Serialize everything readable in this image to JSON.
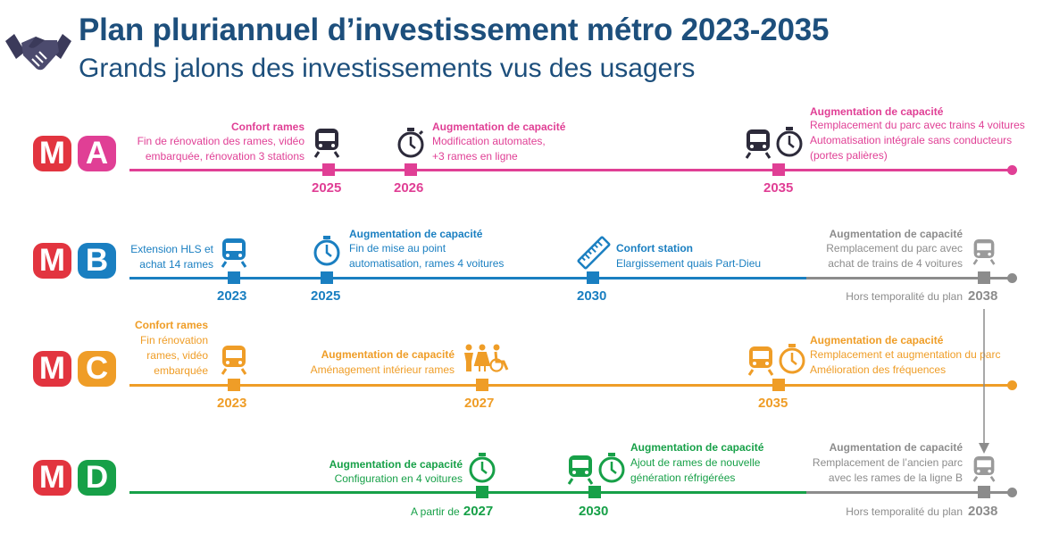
{
  "header": {
    "title": "Plan pluriannuel d’investissement métro 2023-2035",
    "subtitle": "Grands jalons des investissements vus des usagers"
  },
  "colors": {
    "title": "#1d4f7c",
    "red": "#e2343f",
    "a": "#e03f95",
    "b": "#1a7fc1",
    "c": "#ef9d27",
    "d": "#17a048",
    "gray": "#8c8c8c"
  },
  "lines": {
    "a": {
      "badge_m": "M",
      "badge_letter": "A",
      "e1": {
        "title": "Confort rames",
        "text": [
          "Fin de rénovation des rames, vidéo",
          "embarquée, rénovation 3 stations"
        ],
        "year": "2025",
        "icon": "train-icon"
      },
      "e2": {
        "title": "Augmentation de capacité",
        "text": [
          "Modification automates,",
          "+3 rames en ligne"
        ],
        "year": "2026",
        "icon": "stopwatch-icon"
      },
      "e3": {
        "title": "Augmentation de capacité",
        "text": [
          "Remplacement du parc avec trains 4 voitures",
          "Automatisation intégrale sans conducteurs",
          "(portes palières)"
        ],
        "year": "2035",
        "icon": "train-stopwatch-icon"
      }
    },
    "b": {
      "badge_m": "M",
      "badge_letter": "B",
      "e1": {
        "title": "",
        "text": [
          "Extension HLS et",
          "achat 14 rames"
        ],
        "year": "2023",
        "icon": "train-icon"
      },
      "e2": {
        "title": "Augmentation de capacité",
        "text": [
          "Fin de mise au point",
          "automatisation, rames 4 voitures"
        ],
        "year": "2025",
        "icon": "stopwatch-icon"
      },
      "e3": {
        "title": "Confort station",
        "text": [
          "Elargissement quais Part-Dieu"
        ],
        "year": "2030",
        "icon": "ruler-icon"
      },
      "e4": {
        "title": "Augmentation de capacité",
        "text": [
          "Remplacement du parc avec",
          "achat de trains de 4 voitures"
        ],
        "year": "2038",
        "note": "Hors temporalité du plan",
        "icon": "train-icon"
      }
    },
    "c": {
      "badge_m": "M",
      "badge_letter": "C",
      "e1": {
        "title": "Confort rames",
        "text": [
          "Fin rénovation",
          "rames, vidéo",
          "embarquée"
        ],
        "year": "2023",
        "icon": "train-icon"
      },
      "e2": {
        "title": "Augmentation de capacité",
        "text": [
          "Aménagement intérieur rames"
        ],
        "year": "2027",
        "icon": "passengers-icon"
      },
      "e3": {
        "title": "Augmentation de capacité",
        "text": [
          "Remplacement et augmentation du parc",
          "Amélioration des fréquences"
        ],
        "year": "2035",
        "icon": "train-stopwatch-icon"
      }
    },
    "d": {
      "badge_m": "M",
      "badge_letter": "D",
      "e1": {
        "title": "Augmentation de capacité",
        "text": [
          "Configuration en 4 voitures"
        ],
        "year": "2027",
        "prefix": "A partir de",
        "icon": "stopwatch-icon"
      },
      "e2": {
        "title": "Augmentation de capacité",
        "text": [
          "Ajout de rames de nouvelle",
          "génération réfrigérées"
        ],
        "year": "2030",
        "icon": "train-stopwatch-icon"
      },
      "e3": {
        "title": "Augmentation de capacité",
        "text": [
          "Remplacement de l’ancien parc",
          "avec les rames de la ligne B"
        ],
        "year": "2038",
        "note": "Hors temporalité du plan",
        "icon": "train-icon"
      }
    }
  }
}
